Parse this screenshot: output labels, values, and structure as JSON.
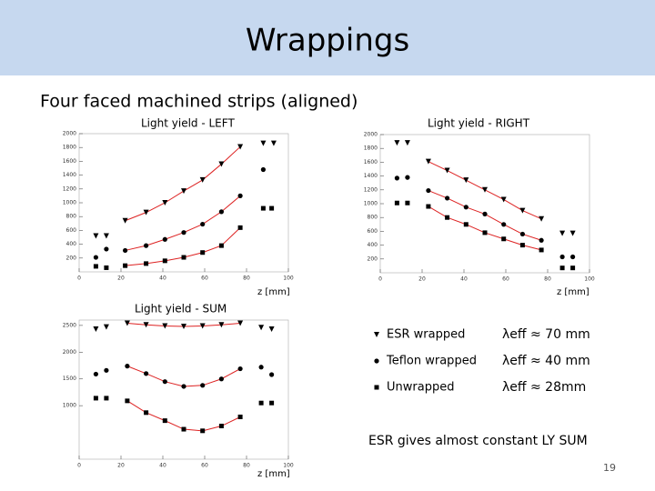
{
  "slide": {
    "title": "Wrappings",
    "subtitle": "Four faced machined strips (aligned)",
    "legend": [
      {
        "marker": "triangle",
        "label": "ESR wrapped",
        "lambda": "λeff ≈ 70 mm"
      },
      {
        "marker": "circle",
        "label": "Teflon wrapped",
        "lambda": "λeff ≈ 40 mm"
      },
      {
        "marker": "square",
        "label": "Unwrapped",
        "lambda": "λeff ≈ 28mm"
      }
    ],
    "note": "ESR gives almost constant LY SUM",
    "page_number": "19"
  },
  "chart_data": [
    {
      "type": "scatter",
      "title": "Light yield - LEFT",
      "x_label": "z [mm]",
      "xlim": [
        0,
        100
      ],
      "xticks": [
        0,
        20,
        40,
        60,
        80,
        100
      ],
      "ylim": [
        0,
        2000
      ],
      "yticks": [
        200,
        400,
        600,
        800,
        1000,
        1200,
        1400,
        1600,
        1800,
        2000
      ],
      "series": [
        {
          "marker": "triangle",
          "color": "#000000",
          "line_color": "#dd2222",
          "x": [
            22,
            32,
            41,
            50,
            59,
            68,
            77
          ],
          "values": [
            740,
            860,
            1000,
            1170,
            1330,
            1560,
            1810
          ]
        },
        {
          "marker": "triangle",
          "color": "#000000",
          "x": [
            8,
            13,
            88,
            93
          ],
          "values": [
            520,
            520,
            1860,
            1860
          ]
        },
        {
          "marker": "circle",
          "color": "#000000",
          "line_color": "#dd2222",
          "x": [
            22,
            32,
            41,
            50,
            59,
            68,
            77
          ],
          "values": [
            310,
            380,
            470,
            570,
            690,
            870,
            1100
          ]
        },
        {
          "marker": "circle",
          "color": "#000000",
          "x": [
            8,
            13,
            88
          ],
          "values": [
            210,
            330,
            1480
          ]
        },
        {
          "marker": "square",
          "color": "#000000",
          "line_color": "#dd2222",
          "x": [
            22,
            32,
            41,
            50,
            59,
            68,
            77
          ],
          "values": [
            90,
            120,
            160,
            210,
            280,
            380,
            640
          ]
        },
        {
          "marker": "square",
          "color": "#000000",
          "x": [
            8,
            13,
            88,
            92
          ],
          "values": [
            80,
            60,
            920,
            920
          ]
        }
      ]
    },
    {
      "type": "scatter",
      "title": "Light yield - RIGHT",
      "x_label": "z [mm]",
      "xlim": [
        0,
        100
      ],
      "xticks": [
        0,
        20,
        40,
        60,
        80,
        100
      ],
      "ylim": [
        0,
        2000
      ],
      "yticks": [
        200,
        400,
        600,
        800,
        1000,
        1200,
        1400,
        1600,
        1800,
        2000
      ],
      "series": [
        {
          "marker": "triangle",
          "color": "#000000",
          "line_color": "#dd2222",
          "x": [
            23,
            32,
            41,
            50,
            59,
            68,
            77
          ],
          "values": [
            1610,
            1480,
            1340,
            1200,
            1060,
            900,
            780
          ]
        },
        {
          "marker": "triangle",
          "color": "#000000",
          "x": [
            8,
            13,
            87,
            92
          ],
          "values": [
            1880,
            1880,
            570,
            570
          ]
        },
        {
          "marker": "circle",
          "color": "#000000",
          "line_color": "#dd2222",
          "x": [
            23,
            32,
            41,
            50,
            59,
            68,
            77
          ],
          "values": [
            1190,
            1080,
            950,
            850,
            700,
            560,
            470
          ]
        },
        {
          "marker": "circle",
          "color": "#000000",
          "x": [
            8,
            13,
            87,
            92
          ],
          "values": [
            1370,
            1380,
            230,
            230
          ]
        },
        {
          "marker": "square",
          "color": "#000000",
          "line_color": "#dd2222",
          "x": [
            23,
            32,
            41,
            50,
            59,
            68,
            77
          ],
          "values": [
            960,
            800,
            700,
            580,
            490,
            400,
            330
          ]
        },
        {
          "marker": "square",
          "color": "#000000",
          "x": [
            8,
            13,
            87,
            92
          ],
          "values": [
            1010,
            1010,
            70,
            70
          ]
        }
      ]
    },
    {
      "type": "scatter",
      "title": "Light yield - SUM",
      "x_label": "z [mm]",
      "xlim": [
        0,
        100
      ],
      "xticks": [
        0,
        20,
        40,
        60,
        80,
        100
      ],
      "ylim": [
        0,
        2600
      ],
      "yticks": [
        1000,
        1500,
        2000,
        2500
      ],
      "series": [
        {
          "marker": "triangle",
          "color": "#000000",
          "line_color": "#dd2222",
          "x": [
            23,
            32,
            41,
            50,
            59,
            68,
            77
          ],
          "values": [
            2540,
            2510,
            2490,
            2480,
            2490,
            2510,
            2540
          ]
        },
        {
          "marker": "triangle",
          "color": "#000000",
          "x": [
            8,
            13,
            87,
            92
          ],
          "values": [
            2430,
            2470,
            2460,
            2430
          ]
        },
        {
          "marker": "circle",
          "color": "#000000",
          "line_color": "#dd2222",
          "x": [
            23,
            32,
            41,
            50,
            59,
            68,
            77
          ],
          "values": [
            1740,
            1600,
            1450,
            1360,
            1380,
            1500,
            1690
          ]
        },
        {
          "marker": "circle",
          "color": "#000000",
          "x": [
            8,
            13,
            87,
            92
          ],
          "values": [
            1590,
            1660,
            1720,
            1580
          ]
        },
        {
          "marker": "square",
          "color": "#000000",
          "line_color": "#dd2222",
          "x": [
            23,
            32,
            41,
            50,
            59,
            68,
            77
          ],
          "values": [
            1090,
            870,
            720,
            560,
            530,
            620,
            790
          ]
        },
        {
          "marker": "square",
          "color": "#000000",
          "x": [
            8,
            13,
            87,
            92
          ],
          "values": [
            1140,
            1140,
            1050,
            1050
          ]
        }
      ]
    }
  ]
}
